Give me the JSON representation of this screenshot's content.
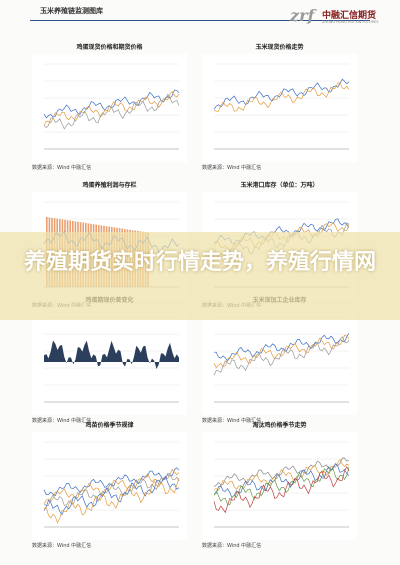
{
  "header": {
    "section": "玉米养殖链监测图库",
    "logo_mark": "zrf",
    "logo": "中融汇信期货",
    "logo_en": "ZHONG RONG HUI XIN FUTURES"
  },
  "banner": "养殖期货实时行情走势，养殖行情网",
  "panels": [
    {
      "title": "鸡蛋现货价格和期货价格",
      "source": "数据来源：Wind 中融汇信"
    },
    {
      "title": "玉米现货价格走势",
      "source": "数据来源：Wind 中融汇信"
    },
    {
      "title": "鸡蛋养殖利润与存栏",
      "source": "数据来源：Wind 中融汇信"
    },
    {
      "title": "玉米港口库存（单位：万吨）",
      "source": "数据来源：Wind 中融汇信"
    },
    {
      "title": "鸡蛋期现价差变化",
      "source": "数据来源：Wind 中融汇信"
    },
    {
      "title": "玉米深加工企业库存",
      "source": "数据来源：Wind 中融汇信"
    },
    {
      "title": "鸡苗价格季节规律",
      "source": "数据来源：Wind 中融汇信"
    },
    {
      "title": "淘汰鸡价格季节走势",
      "source": "数据来源：Wind 中融汇信"
    }
  ]
}
